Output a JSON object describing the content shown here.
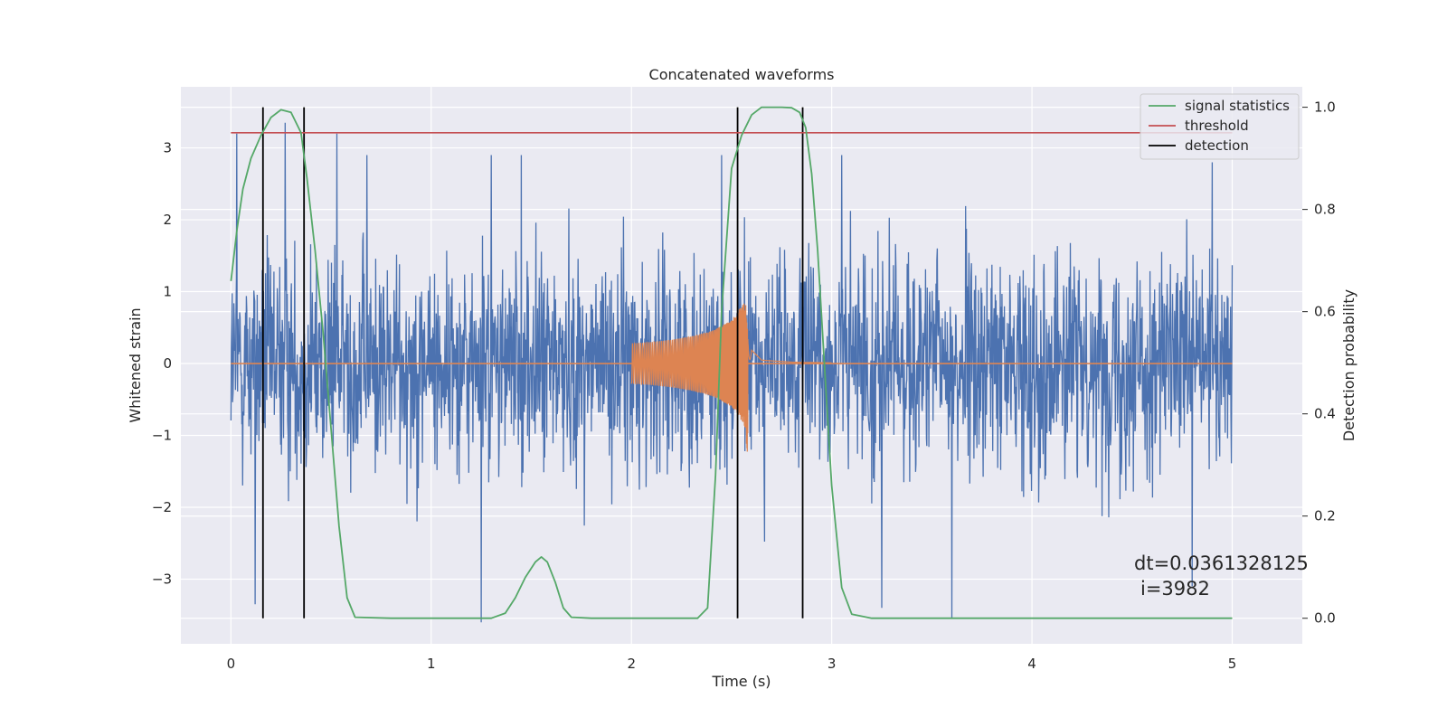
{
  "chart_data": {
    "type": "line",
    "title": "Concatenated waveforms",
    "xlabel": "Time (s)",
    "ylabel": "Whitened strain",
    "y2label": "Detection probability",
    "xlim": [
      -0.25,
      5.35
    ],
    "ylim": [
      -3.9,
      3.85
    ],
    "y2lim": [
      -0.05,
      1.04
    ],
    "xticks": [
      0,
      1,
      2,
      3,
      4,
      5
    ],
    "yticks": [
      -3,
      -2,
      -1,
      0,
      1,
      2,
      3
    ],
    "y2ticks": [
      0.0,
      0.2,
      0.4,
      0.6,
      0.8,
      1.0
    ],
    "xtick_labels": [
      "0",
      "1",
      "2",
      "3",
      "4",
      "5"
    ],
    "ytick_labels": [
      "−3",
      "−2",
      "−1",
      "0",
      "1",
      "2",
      "3"
    ],
    "y2tick_labels": [
      "0.0",
      "0.2",
      "0.4",
      "0.6",
      "0.8",
      "1.0"
    ],
    "grid": true,
    "legend_position": "top-right",
    "legend": [
      "signal statistics",
      "threshold",
      "detection"
    ],
    "colors": {
      "strain": "#4c72b0",
      "injection": "#dd8452",
      "signal statistics": "#55a868",
      "threshold": "#c44e52",
      "detection": "#000000",
      "background": "#eaeaf2",
      "grid": "#ffffff"
    },
    "series": [
      {
        "name": "",
        "axis": "left",
        "description_kind": "noise",
        "x_range": [
          0,
          5
        ],
        "typical_amplitude": 1.3,
        "peak_values": [
          [
            0.03,
            3.2
          ],
          [
            0.27,
            3.35
          ],
          [
            0.53,
            3.2
          ],
          [
            0.68,
            2.9
          ],
          [
            1.3,
            2.9
          ],
          [
            1.45,
            2.9
          ],
          [
            2.45,
            2.9
          ],
          [
            3.05,
            2.9
          ],
          [
            4.9,
            2.8
          ],
          [
            1.25,
            -3.6
          ],
          [
            0.12,
            -3.35
          ],
          [
            3.6,
            -3.55
          ],
          [
            3.25,
            -3.4
          ],
          [
            4.8,
            -3.1
          ]
        ]
      },
      {
        "name": "",
        "axis": "left",
        "description_kind": "chirp",
        "x": [
          2.0,
          2.1,
          2.2,
          2.3,
          2.4,
          2.5,
          2.55,
          2.58,
          2.6,
          2.65,
          2.8,
          3.0
        ],
        "envelope": [
          0.28,
          0.3,
          0.33,
          0.38,
          0.45,
          0.6,
          0.8,
          0.95,
          0.2,
          0.05,
          0.02,
          0.01
        ]
      },
      {
        "name": "signal statistics",
        "axis": "right",
        "x": [
          0.0,
          0.03,
          0.06,
          0.1,
          0.15,
          0.2,
          0.25,
          0.3,
          0.35,
          0.38,
          0.42,
          0.46,
          0.5,
          0.54,
          0.58,
          0.62,
          0.8,
          1.0,
          1.2,
          1.3,
          1.37,
          1.42,
          1.47,
          1.52,
          1.55,
          1.58,
          1.62,
          1.66,
          1.7,
          1.8,
          2.0,
          2.2,
          2.33,
          2.38,
          2.42,
          2.45,
          2.5,
          2.55,
          2.6,
          2.65,
          2.7,
          2.75,
          2.8,
          2.84,
          2.87,
          2.9,
          2.93,
          2.96,
          3.0,
          3.05,
          3.1,
          3.2,
          3.5,
          4.0,
          4.5,
          5.0
        ],
        "y": [
          0.66,
          0.76,
          0.84,
          0.9,
          0.945,
          0.98,
          0.995,
          0.99,
          0.95,
          0.86,
          0.72,
          0.56,
          0.37,
          0.18,
          0.04,
          0.002,
          0.0,
          0.0,
          0.0,
          0.0,
          0.01,
          0.04,
          0.08,
          0.11,
          0.12,
          0.11,
          0.07,
          0.02,
          0.002,
          0.0,
          0.0,
          0.0,
          0.0,
          0.02,
          0.28,
          0.6,
          0.88,
          0.945,
          0.985,
          1.0,
          1.0,
          1.0,
          0.999,
          0.99,
          0.96,
          0.87,
          0.72,
          0.52,
          0.26,
          0.06,
          0.008,
          0.0,
          0.0,
          0.0,
          0.0,
          0.0
        ]
      },
      {
        "name": "threshold",
        "axis": "right",
        "x": [
          0.0,
          5.0
        ],
        "y": [
          0.95,
          0.95
        ]
      },
      {
        "name": "detection",
        "axis": "right",
        "kind": "vlines",
        "x": [
          0.16,
          0.365,
          2.53,
          2.855
        ],
        "y_range": [
          0.0,
          1.0
        ]
      }
    ],
    "annotation": [
      "dt=0.0361328125",
      "i=3982"
    ]
  }
}
